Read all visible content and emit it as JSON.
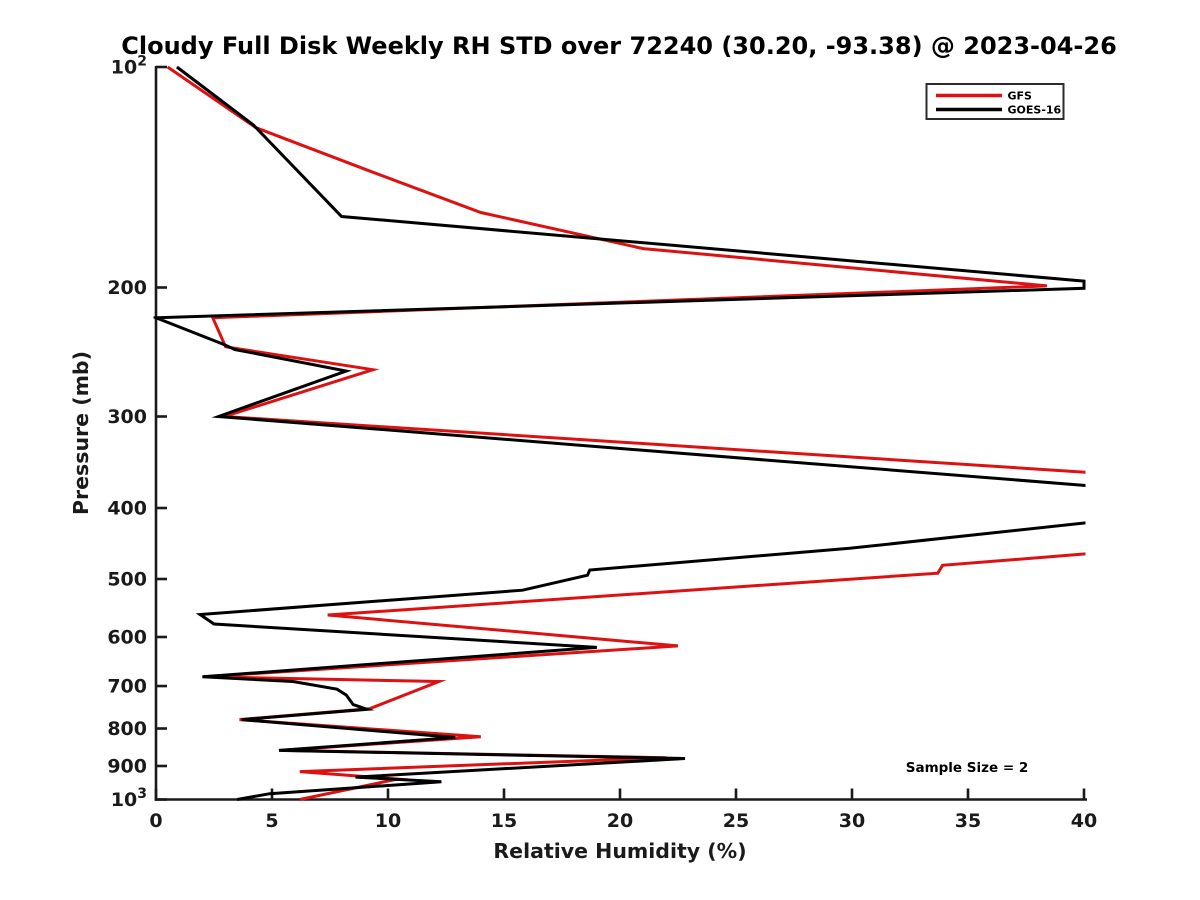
{
  "chart_data": {
    "type": "line",
    "title": "Cloudy Full Disk Weekly RH STD over 72240 (30.20, -93.38) @ 2023-04-26",
    "xlabel": "Relative Humidity (%)",
    "ylabel": "Pressure (mb)",
    "annotation": "Sample Size = 2",
    "xlim": [
      0,
      40
    ],
    "x_ticks": [
      0,
      5,
      10,
      15,
      20,
      25,
      30,
      35,
      40
    ],
    "y_scale": "log",
    "ylim": [
      100,
      1000
    ],
    "y_axis_inverted": true,
    "y_ticks": [
      {
        "value": 100,
        "label": "10^2"
      },
      {
        "value": 200,
        "label": "200"
      },
      {
        "value": 300,
        "label": "300"
      },
      {
        "value": 400,
        "label": "400"
      },
      {
        "value": 500,
        "label": "500"
      },
      {
        "value": 600,
        "label": "600"
      },
      {
        "value": 700,
        "label": "700"
      },
      {
        "value": 800,
        "label": "800"
      },
      {
        "value": 900,
        "label": "900"
      },
      {
        "value": 1000,
        "label": "10^3"
      }
    ],
    "grid": false,
    "axis_color": "#1a1a1a",
    "legend": {
      "position": "upper-right",
      "entries": [
        {
          "label": "GFS",
          "color": "#dd1111"
        },
        {
          "label": "GOES-16",
          "color": "#000000"
        }
      ]
    },
    "clip_note": "series values above RH 40 are clipped at the right axis limit",
    "series": [
      {
        "name": "GFS",
        "color": "#dd1111",
        "points_rh_pressure": [
          [
            0.5,
            100
          ],
          [
            4.3,
            121
          ],
          [
            9.3,
            139
          ],
          [
            14.0,
            158
          ],
          [
            21.0,
            177
          ],
          [
            38.4,
            199
          ],
          [
            2.45,
            220
          ],
          [
            3.0,
            241
          ],
          [
            9.35,
            259
          ],
          [
            2.95,
            300
          ],
          [
            41.6,
            360
          ],
          [
            41.6,
            458
          ],
          [
            33.9,
            479
          ],
          [
            33.7,
            491
          ],
          [
            7.4,
            560
          ],
          [
            22.5,
            617
          ],
          [
            2.1,
            680
          ],
          [
            12.2,
            690
          ],
          [
            9.2,
            752
          ],
          [
            3.6,
            778
          ],
          [
            14.0,
            821
          ],
          [
            5.4,
            857
          ],
          [
            22.0,
            877
          ],
          [
            6.2,
            916
          ],
          [
            10.4,
            938
          ],
          [
            6.2,
            1000
          ]
        ]
      },
      {
        "name": "GOES-16",
        "color": "#000000",
        "points_rh_pressure": [
          [
            0.9,
            100
          ],
          [
            4.2,
            120
          ],
          [
            8.0,
            160
          ],
          [
            40.0,
            196
          ],
          [
            40.0,
            200.5
          ],
          [
            0.0,
            220
          ],
          [
            2.9,
            239
          ],
          [
            3.4,
            243
          ],
          [
            8.2,
            260
          ],
          [
            2.7,
            300
          ],
          [
            41.6,
            376
          ],
          [
            41.6,
            414
          ],
          [
            29.9,
            454
          ],
          [
            18.7,
            486
          ],
          [
            18.6,
            494
          ],
          [
            15.8,
            518
          ],
          [
            1.9,
            559
          ],
          [
            2.5,
            576
          ],
          [
            19.0,
            620
          ],
          [
            2.0,
            680
          ],
          [
            5.9,
            690
          ],
          [
            7.8,
            707
          ],
          [
            8.2,
            720
          ],
          [
            8.5,
            742
          ],
          [
            9.1,
            753
          ],
          [
            3.7,
            778
          ],
          [
            12.9,
            823
          ],
          [
            5.3,
            857
          ],
          [
            22.8,
            879
          ],
          [
            8.6,
            932
          ],
          [
            12.3,
            946
          ],
          [
            4.9,
            982
          ],
          [
            3.5,
            1000
          ]
        ]
      }
    ]
  }
}
